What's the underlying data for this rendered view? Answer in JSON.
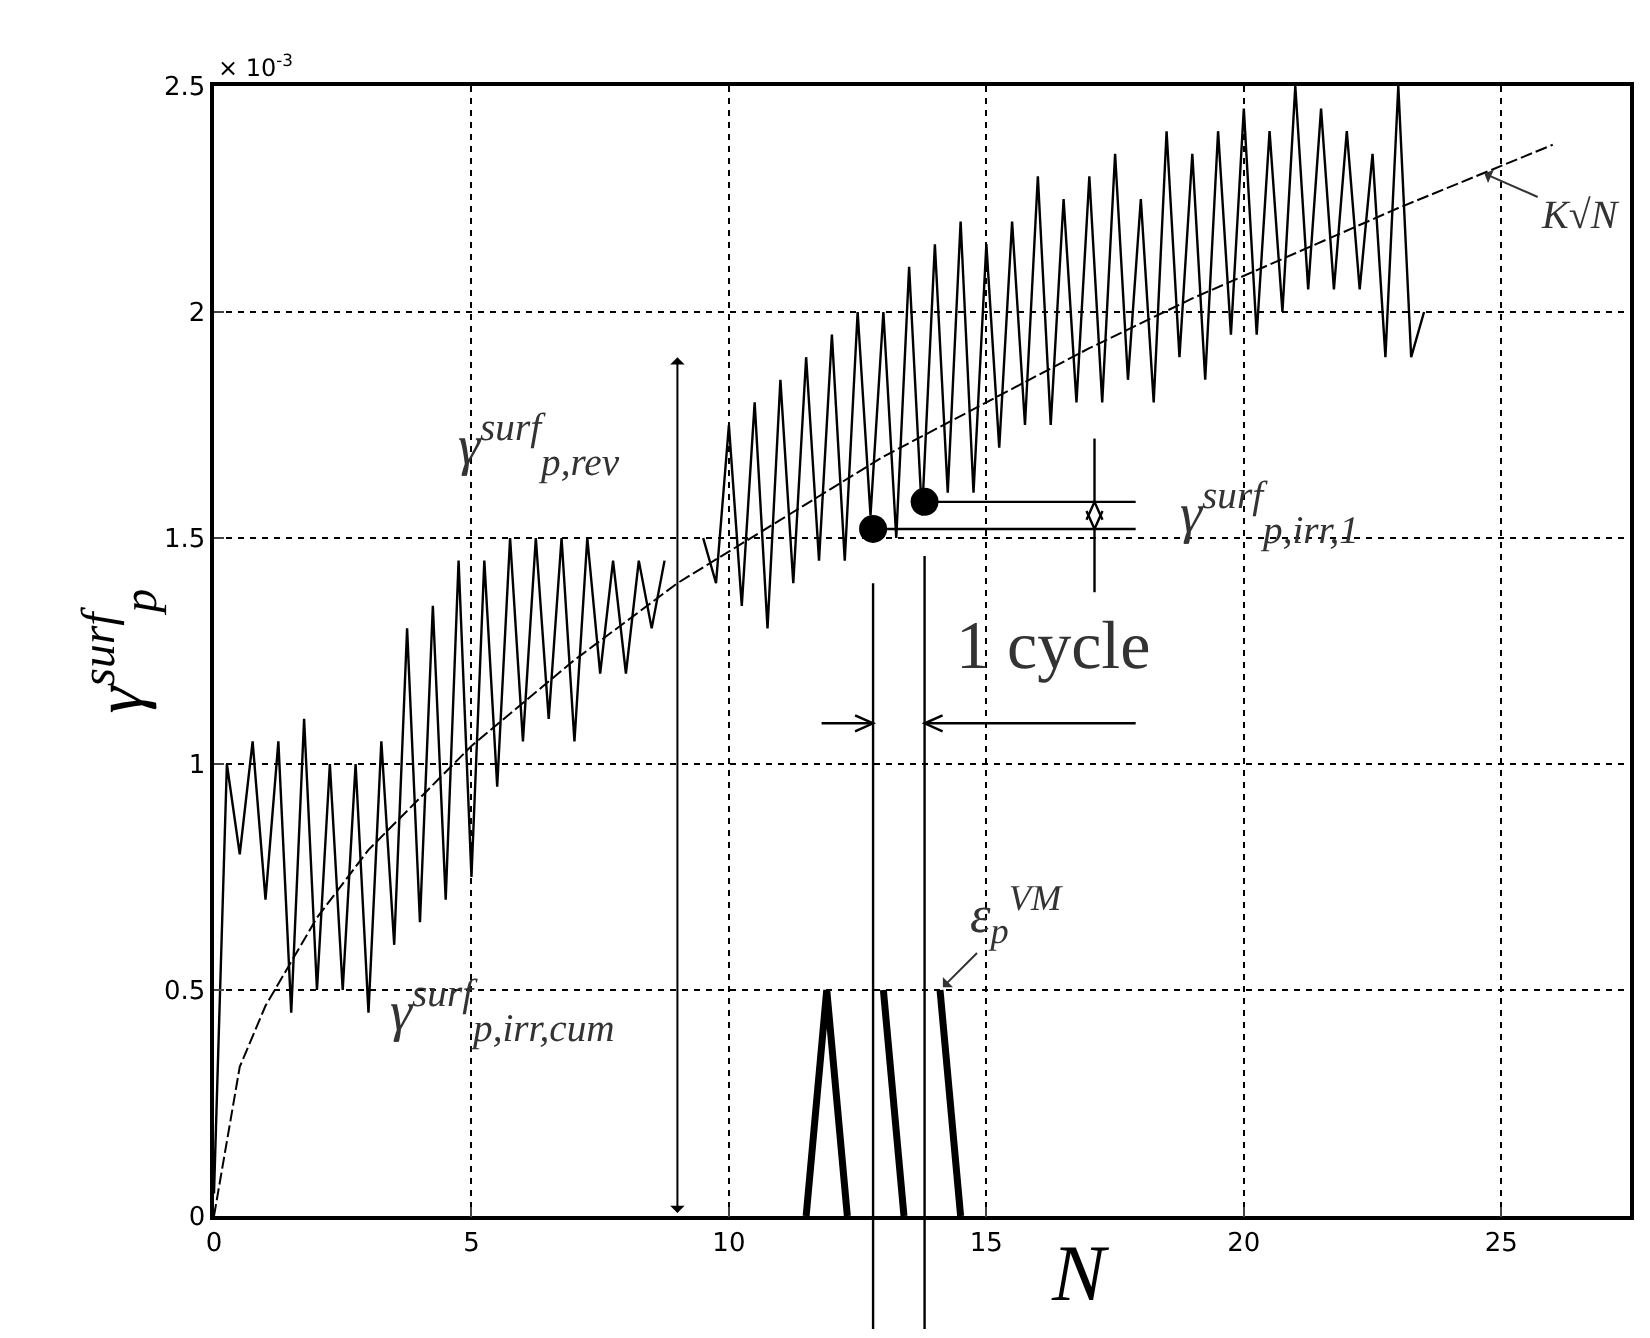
{
  "chart_data": {
    "type": "line",
    "xlabel": "N",
    "ylabel": "γ$^{surf}$$_{p}$",
    "xlim": [
      0,
      27.5
    ],
    "xticks": [
      0,
      5,
      10,
      15,
      20,
      25
    ],
    "ylim": [
      0,
      2.5
    ],
    "yticks": [
      0,
      0.5,
      1,
      1.5,
      2,
      2.5
    ],
    "grid": true,
    "series": [
      {
        "color": "#000000",
        "line_style": "solid",
        "marker": "none",
        "x": [
          0,
          0.25,
          0.5,
          0.75,
          1,
          1.25,
          1.5,
          1.75,
          2,
          2.25,
          2.5,
          2.75,
          3,
          3.25,
          3.5,
          3.75,
          4,
          4.25,
          4.5,
          4.75,
          5,
          5.25,
          5.5,
          5.75,
          6,
          6.25,
          6.5,
          6.75,
          7,
          7.25,
          7.5,
          7.75,
          8,
          8.25,
          8.5,
          8.75,
          9,
          9.25,
          9.5,
          9.75,
          10,
          10.25,
          10.5,
          10.75,
          11,
          11.25,
          11.5,
          11.75,
          12,
          12.25,
          12.5,
          12.75,
          13,
          13.25,
          13.5,
          13.75,
          14,
          14.25,
          14.5,
          14.75,
          15,
          15.25,
          15.5,
          15.75,
          16,
          16.25,
          16.5,
          16.75,
          17,
          17.25,
          17.5,
          17.75,
          18,
          18.25,
          18.5,
          18.75,
          19,
          19.25,
          19.5,
          19.75,
          20,
          20.25,
          20.5,
          20.75,
          21,
          21.25,
          21.5,
          21.75,
          22,
          22.25,
          22.5,
          22.75,
          23,
          23.25,
          23.5
        ],
        "values": [
          0.05,
          1.0,
          0.8,
          1.05,
          0.7,
          1.05,
          0.45,
          1.1,
          0.5,
          1.0,
          0.5,
          1.0,
          0.45,
          1.05,
          0.6,
          1.3,
          0.65,
          1.35,
          0.7,
          1.45,
          0.75,
          1.45,
          0.95,
          1.5,
          1.05,
          1.5,
          1.1,
          1.5,
          1.05,
          1.5,
          1.2,
          1.45,
          1.2,
          1.45,
          1.3,
          1.45,
          null,
          null,
          1.5,
          1.4,
          1.75,
          1.35,
          1.8,
          1.3,
          1.85,
          1.4,
          1.9,
          1.45,
          1.95,
          1.45,
          2.0,
          1.55,
          2.0,
          1.5,
          2.1,
          1.55,
          2.15,
          1.6,
          2.2,
          1.6,
          2.15,
          1.7,
          2.2,
          1.75,
          2.3,
          1.75,
          2.25,
          1.8,
          2.3,
          1.8,
          2.35,
          1.85,
          2.25,
          1.8,
          2.4,
          1.9,
          2.35,
          1.85,
          2.4,
          1.95,
          2.45,
          1.95,
          2.4,
          2.0,
          2.5,
          2.05,
          2.45,
          2.05,
          2.4,
          2.05,
          2.35,
          1.9,
          2.5,
          1.9,
          2.0
        ]
      },
      {
        "color": "#000000",
        "line_style": "dashed",
        "marker": "none",
        "x": [
          0,
          0.5,
          1,
          2,
          3,
          5,
          7,
          9,
          11,
          13,
          15,
          17,
          19,
          21,
          23,
          26
        ],
        "values": [
          0,
          0.33,
          0.465,
          0.66,
          0.81,
          1.04,
          1.23,
          1.4,
          1.54,
          1.68,
          1.8,
          1.92,
          2.03,
          2.13,
          2.23,
          2.37
        ]
      },
      {
        "color": "#000000",
        "line_style": "solid",
        "marker": "none",
        "x": [
          11.5,
          11.9,
          12.3,
          12.6,
          13.0,
          13.4,
          13.7,
          14.1,
          14.5
        ],
        "values": [
          0,
          0.5,
          0,
          null,
          0.5,
          0,
          null,
          0.5,
          0
        ]
      },
      {
        "type": "scatter",
        "color": "#000000",
        "marker": "circle",
        "x": [
          12.8,
          13.8
        ],
        "values": [
          1.52,
          1.58
        ]
      }
    ],
    "annotations": [
      "× 10$^{-3}$",
      "γ$^{surf}$$_{p,rev}$",
      "γ$^{surf}$$_{p,irr,cum}$",
      {
        "text": "γ$^{surf}$$_{p,irr,1}$",
        "x": 13.8,
        "y": 1.58
      },
      "1 cycle",
      {
        "text": "ε$_{p}$$^{VM}$",
        "x": 14.1,
        "y": 0.5
      },
      {
        "text": "K√N",
        "x": 24.6,
        "y": 2.31
      }
    ]
  }
}
